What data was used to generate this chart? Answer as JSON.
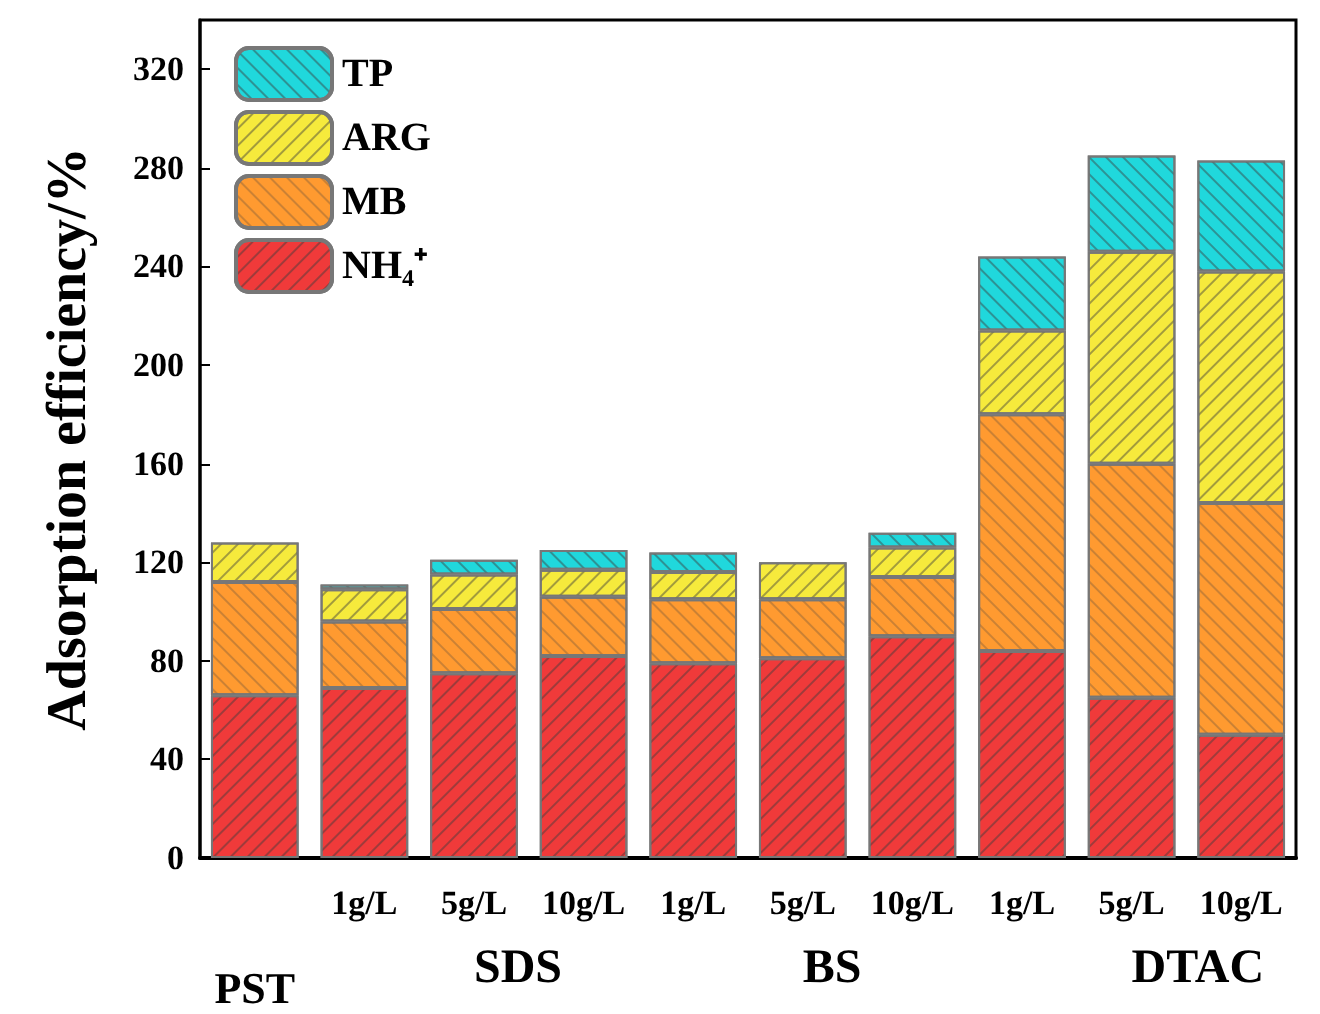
{
  "chart_data": {
    "type": "bar",
    "stacked": true,
    "ylabel": "Adsorption efficiency/%",
    "categories": [
      "PST",
      "1g/L",
      "5g/L",
      "10g/L",
      "1g/L",
      "5g/L",
      "10g/L",
      "1g/L",
      "5g/L",
      "10g/L"
    ],
    "series": [
      {
        "name": "NH₄⁺",
        "color": "#f03a3a",
        "values": [
          66,
          69,
          75,
          82,
          79,
          81,
          90,
          84,
          65,
          50
        ]
      },
      {
        "name": "MB",
        "color": "#ff9a30",
        "values": [
          46,
          27,
          26,
          24,
          26,
          24,
          24,
          96,
          95,
          94
        ]
      },
      {
        "name": "ARG",
        "color": "#f6ea3c",
        "values": [
          16,
          13,
          14,
          11,
          11,
          15,
          12,
          34,
          86,
          94
        ]
      },
      {
        "name": "TP",
        "color": "#20d8dc",
        "values": [
          null,
          2,
          6,
          8,
          8,
          null,
          6,
          30,
          39,
          45
        ]
      }
    ],
    "ylim": [
      0,
      340
    ],
    "yticks": [
      0,
      40,
      80,
      120,
      160,
      200,
      240,
      280,
      320
    ],
    "annotations": [
      "SDS",
      "BS",
      "DTAC"
    ],
    "legend": "top left",
    "grid": false
  }
}
